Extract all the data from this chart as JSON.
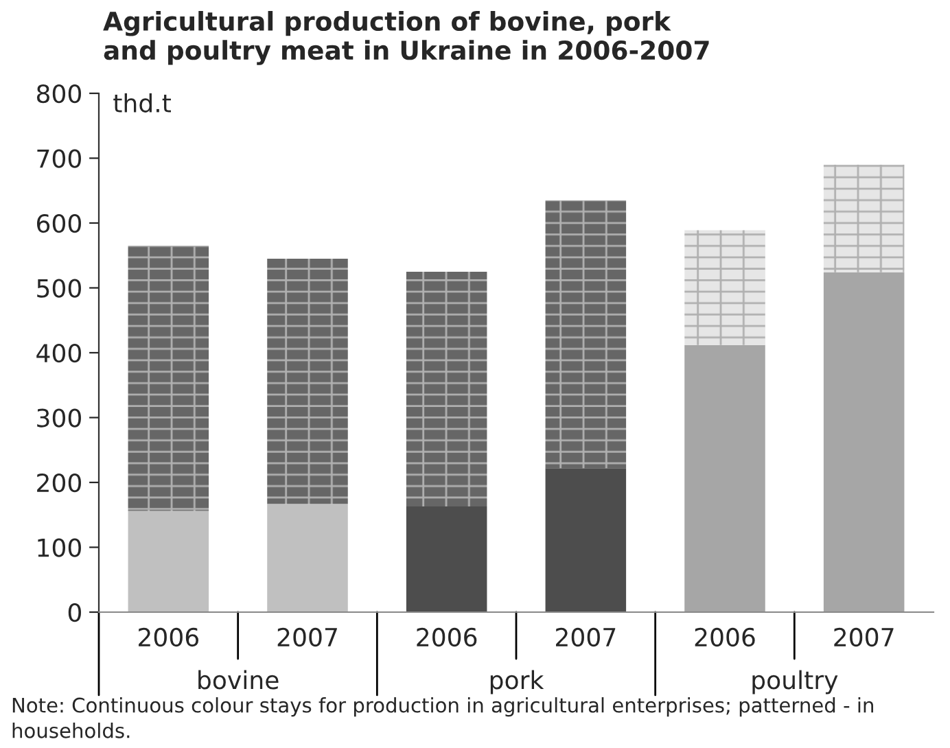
{
  "chart_data": {
    "type": "bar",
    "title": "Agricultural production of bovine, pork\nand poultry meat in Ukraine in 2006-2007",
    "ylabel": "thd.t",
    "categories": [
      "2006",
      "2007",
      "2006",
      "2007",
      "2006",
      "2007"
    ],
    "stacked": true,
    "series": [
      {
        "colors": [
          "#c0c0c0",
          "#c0c0c0",
          "#4d4d4d",
          "#4d4d4d",
          "#a6a6a6",
          "#a6a6a6"
        ],
        "values": [
          156,
          167,
          163,
          222,
          412,
          524
        ]
      },
      {
        "colors": [
          "#666666",
          "#666666",
          "#666666",
          "#666666",
          "#e6e6e6",
          "#e6e6e6"
        ],
        "values": [
          409,
          378,
          362,
          413,
          177,
          166
        ]
      }
    ],
    "ylim": [
      0,
      800
    ],
    "yticks": [
      0,
      100,
      200,
      300,
      400,
      500,
      600,
      700,
      800
    ],
    "annotations": [
      "bovine",
      "pork",
      "poultry",
      "Note: Continuous colour stays for production in agricultural enterprises; patterned - in households."
    ],
    "grid": false,
    "legend": false
  }
}
